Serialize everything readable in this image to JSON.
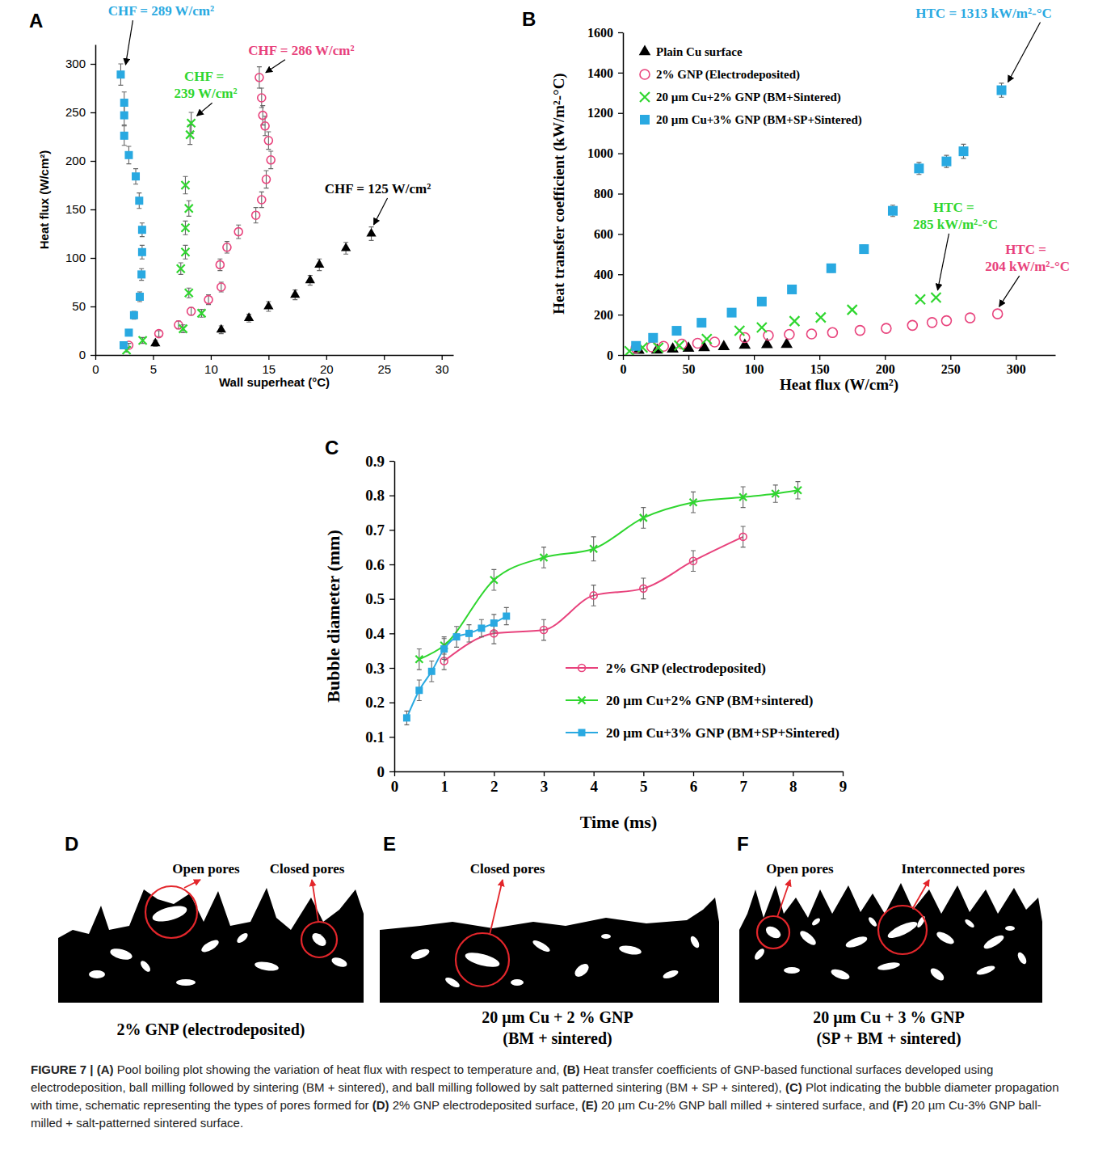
{
  "chart_data": [
    {
      "panel": "A",
      "type": "scatter",
      "x_label": "Wall superheat (°C)",
      "y_label": "Heat flux (W/cm²)",
      "xlim": [
        0,
        31
      ],
      "xticks": [
        0,
        5,
        10,
        15,
        20,
        25,
        30
      ],
      "ylim": [
        0,
        320
      ],
      "yticks": [
        0,
        50,
        100,
        150,
        200,
        250,
        300
      ],
      "grid": false,
      "series": [
        {
          "color": "#000000",
          "marker": "triangle",
          "x": [
            5.2,
            10.9,
            13.3,
            15.0,
            17.3,
            18.6,
            19.4,
            21.7,
            23.9
          ],
          "values": [
            12,
            26,
            38,
            50,
            62,
            77,
            93,
            110,
            125
          ],
          "errors": [
            3,
            4,
            4,
            5,
            5,
            5,
            6,
            6,
            7
          ],
          "annotation": "CHF = 125 W/cm²"
        },
        {
          "color": "#e8427c",
          "marker": "open-circle",
          "x": [
            2.9,
            5.5,
            7.2,
            8.3,
            9.8,
            10.9,
            10.8,
            11.4,
            12.4,
            13.9,
            14.4,
            14.8,
            15.2,
            15.0,
            14.7,
            14.5,
            14.4,
            14.2
          ],
          "values": [
            10,
            22,
            31,
            45,
            57,
            70,
            93,
            111,
            127,
            144,
            160,
            181,
            201,
            221,
            236,
            247,
            265,
            286
          ],
          "errors": [
            2,
            3,
            4,
            4,
            5,
            5,
            6,
            6,
            7,
            8,
            8,
            9,
            9,
            9,
            10,
            10,
            10,
            11
          ],
          "annotation": "CHF = 286 W/cm²"
        },
        {
          "color": "#2fd62f",
          "marker": "x",
          "x": [
            2.7,
            4.1,
            7.6,
            9.2,
            8.1,
            7.4,
            7.8,
            7.8,
            8.1,
            7.8,
            8.2,
            8.3
          ],
          "values": [
            5,
            15,
            27,
            43,
            64,
            89,
            106,
            131,
            151,
            175,
            227,
            239
          ],
          "errors": [
            2,
            3,
            4,
            4,
            5,
            6,
            7,
            7,
            8,
            9,
            10,
            11
          ],
          "annotation": "CHF = 239 W/cm²"
        },
        {
          "color": "#29a9e1",
          "marker": "square",
          "x": [
            2.45,
            2.9,
            3.35,
            3.85,
            4.0,
            4.05,
            4.05,
            3.8,
            3.5,
            2.9,
            2.5,
            2.5,
            2.5,
            2.2
          ],
          "values": [
            10,
            23,
            41,
            60,
            83,
            106,
            129,
            159,
            184,
            206,
            226,
            247,
            260,
            289
          ],
          "errors": [
            2,
            3,
            4,
            5,
            6,
            7,
            7,
            8,
            8,
            9,
            10,
            10,
            11,
            11
          ],
          "annotation": "CHF = 289 W/cm²"
        }
      ]
    },
    {
      "panel": "B",
      "type": "scatter",
      "x_label": "Heat flux (W/cm²)",
      "y_label": "Heat transfer coefficient (kW/m²-°C)",
      "xlim": [
        0,
        330
      ],
      "xticks": [
        0,
        50,
        100,
        150,
        200,
        250,
        300
      ],
      "ylim": [
        0,
        1600
      ],
      "yticks": [
        0,
        200,
        400,
        600,
        800,
        1000,
        1200,
        1400,
        1600
      ],
      "grid": false,
      "legend": "upper left",
      "series": [
        {
          "name": "Plain Cu surface",
          "color": "#000000",
          "marker": "triangle",
          "x": [
            12,
            26,
            38,
            50,
            62,
            77,
            93,
            110,
            125
          ],
          "values": [
            23,
            24,
            29,
            33,
            36,
            41,
            48,
            51,
            52
          ]
        },
        {
          "name": "2% GNP (Electrodeposited)",
          "color": "#e8427c",
          "marker": "open-circle",
          "x": [
            10,
            22,
            31,
            45,
            57,
            70,
            93,
            111,
            127,
            144,
            160,
            181,
            201,
            221,
            236,
            247,
            265,
            286
          ],
          "values": [
            34,
            40,
            43,
            54,
            58,
            64,
            86,
            97,
            102,
            104,
            111,
            122,
            132,
            147,
            161,
            170,
            184,
            204
          ],
          "annotation": "HTC = 204 kW/m²-°C"
        },
        {
          "name": "20 µm Cu+2% GNP (BM+Sintered)",
          "color": "#2fd62f",
          "marker": "x",
          "x": [
            5,
            15,
            27,
            43,
            64,
            89,
            106,
            131,
            151,
            175,
            227,
            239
          ],
          "values": [
            19,
            37,
            36,
            47,
            79,
            120,
            136,
            168,
            186,
            224,
            276,
            285
          ],
          "annotation": "HTC = 285 kW/m²-°C"
        },
        {
          "name": "20 µm Cu+3% GNP (BM+SP+Sintered)",
          "color": "#29a9e1",
          "marker": "square",
          "x": [
            10,
            23,
            41,
            60,
            83,
            106,
            129,
            159,
            184,
            206,
            226,
            247,
            260,
            289
          ],
          "values": [
            45,
            85,
            120,
            160,
            210,
            265,
            325,
            430,
            525,
            715,
            925,
            960,
            1010,
            1313
          ],
          "errors": [
            8,
            10,
            10,
            12,
            14,
            16,
            18,
            20,
            20,
            28,
            30,
            30,
            35,
            35
          ],
          "annotation": "HTC = 1313 kW/m²-°C"
        }
      ]
    },
    {
      "panel": "C",
      "type": "line",
      "x_label": "Time (ms)",
      "y_label": "Bubble diameter (mm)",
      "xlim": [
        0,
        9
      ],
      "xticks": [
        0,
        1,
        2,
        3,
        4,
        5,
        6,
        7,
        8,
        9
      ],
      "ylim": [
        0,
        0.9
      ],
      "yticks": [
        0,
        0.1,
        0.2,
        0.3,
        0.4,
        0.5,
        0.6,
        0.7,
        0.8,
        0.9
      ],
      "grid": false,
      "legend": "lower right",
      "series": [
        {
          "name": "2% GNP (electrodeposited)",
          "color": "#e8427c",
          "marker": "open-circle",
          "line_style": "solid",
          "x": [
            1,
            2,
            3,
            4,
            5,
            6,
            7
          ],
          "values": [
            0.32,
            0.4,
            0.41,
            0.51,
            0.53,
            0.61,
            0.68
          ],
          "errors": [
            0.025,
            0.03,
            0.03,
            0.03,
            0.03,
            0.03,
            0.03
          ]
        },
        {
          "name": "20 µm Cu+2% GNP (BM+sintered)",
          "color": "#2fd62f",
          "marker": "x",
          "line_style": "solid",
          "x": [
            0.5,
            1,
            2,
            3,
            4,
            5,
            6,
            7,
            7.65,
            8.1
          ],
          "values": [
            0.325,
            0.365,
            0.555,
            0.62,
            0.645,
            0.735,
            0.78,
            0.795,
            0.805,
            0.815
          ],
          "errors": [
            0.03,
            0.025,
            0.03,
            0.03,
            0.035,
            0.03,
            0.03,
            0.03,
            0.025,
            0.025
          ]
        },
        {
          "name": "20 µm Cu+3% GNP (BM+SP+Sintered)",
          "color": "#29a9e1",
          "marker": "square",
          "line_style": "solid",
          "x": [
            0.25,
            0.5,
            0.75,
            1,
            1.25,
            1.5,
            1.75,
            2,
            2.25
          ],
          "values": [
            0.155,
            0.235,
            0.29,
            0.355,
            0.39,
            0.4,
            0.415,
            0.43,
            0.45
          ],
          "errors": [
            0.02,
            0.03,
            0.03,
            0.03,
            0.03,
            0.025,
            0.025,
            0.025,
            0.025
          ]
        }
      ]
    }
  ],
  "schematics": [
    {
      "panel": "D",
      "labels": [
        "Open pores",
        "Closed pores"
      ],
      "title": [
        "2% GNP (electrodeposited)"
      ]
    },
    {
      "panel": "E",
      "labels": [
        "Closed pores"
      ],
      "title": [
        "20 µm Cu + 2 % GNP",
        "(BM + sintered)"
      ]
    },
    {
      "panel": "F",
      "labels": [
        "Open pores",
        "Interconnected pores"
      ],
      "title": [
        "20 µm Cu + 3 % GNP",
        "(SP + BM + sintered)"
      ]
    }
  ],
  "caption": [
    {
      "text": "FIGURE 7 | ",
      "bold": true
    },
    {
      "text": "(A)",
      "bold": true
    },
    {
      "text": " Pool boiling plot showing the variation of heat flux with respect to temperature and, "
    },
    {
      "text": "(B)",
      "bold": true
    },
    {
      "text": " Heat transfer coefficients of GNP-based functional surfaces developed using electrodeposition, ball milling followed by sintering (BM + sintered), and ball milling followed by salt patterned sintering (BM + SP + sintered), "
    },
    {
      "text": "(C)",
      "bold": true
    },
    {
      "text": " Plot indicating the bubble diameter propagation with time, schematic representing the types of pores formed for "
    },
    {
      "text": "(D)",
      "bold": true
    },
    {
      "text": " 2% GNP electrodeposited surface, "
    },
    {
      "text": "(E)",
      "bold": true
    },
    {
      "text": " 20 µm Cu-2% GNP ball milled + sintered surface, and "
    },
    {
      "text": "(F)",
      "bold": true
    },
    {
      "text": " 20 µm Cu-3% GNP ball-milled + salt-patterned sintered surface."
    }
  ]
}
